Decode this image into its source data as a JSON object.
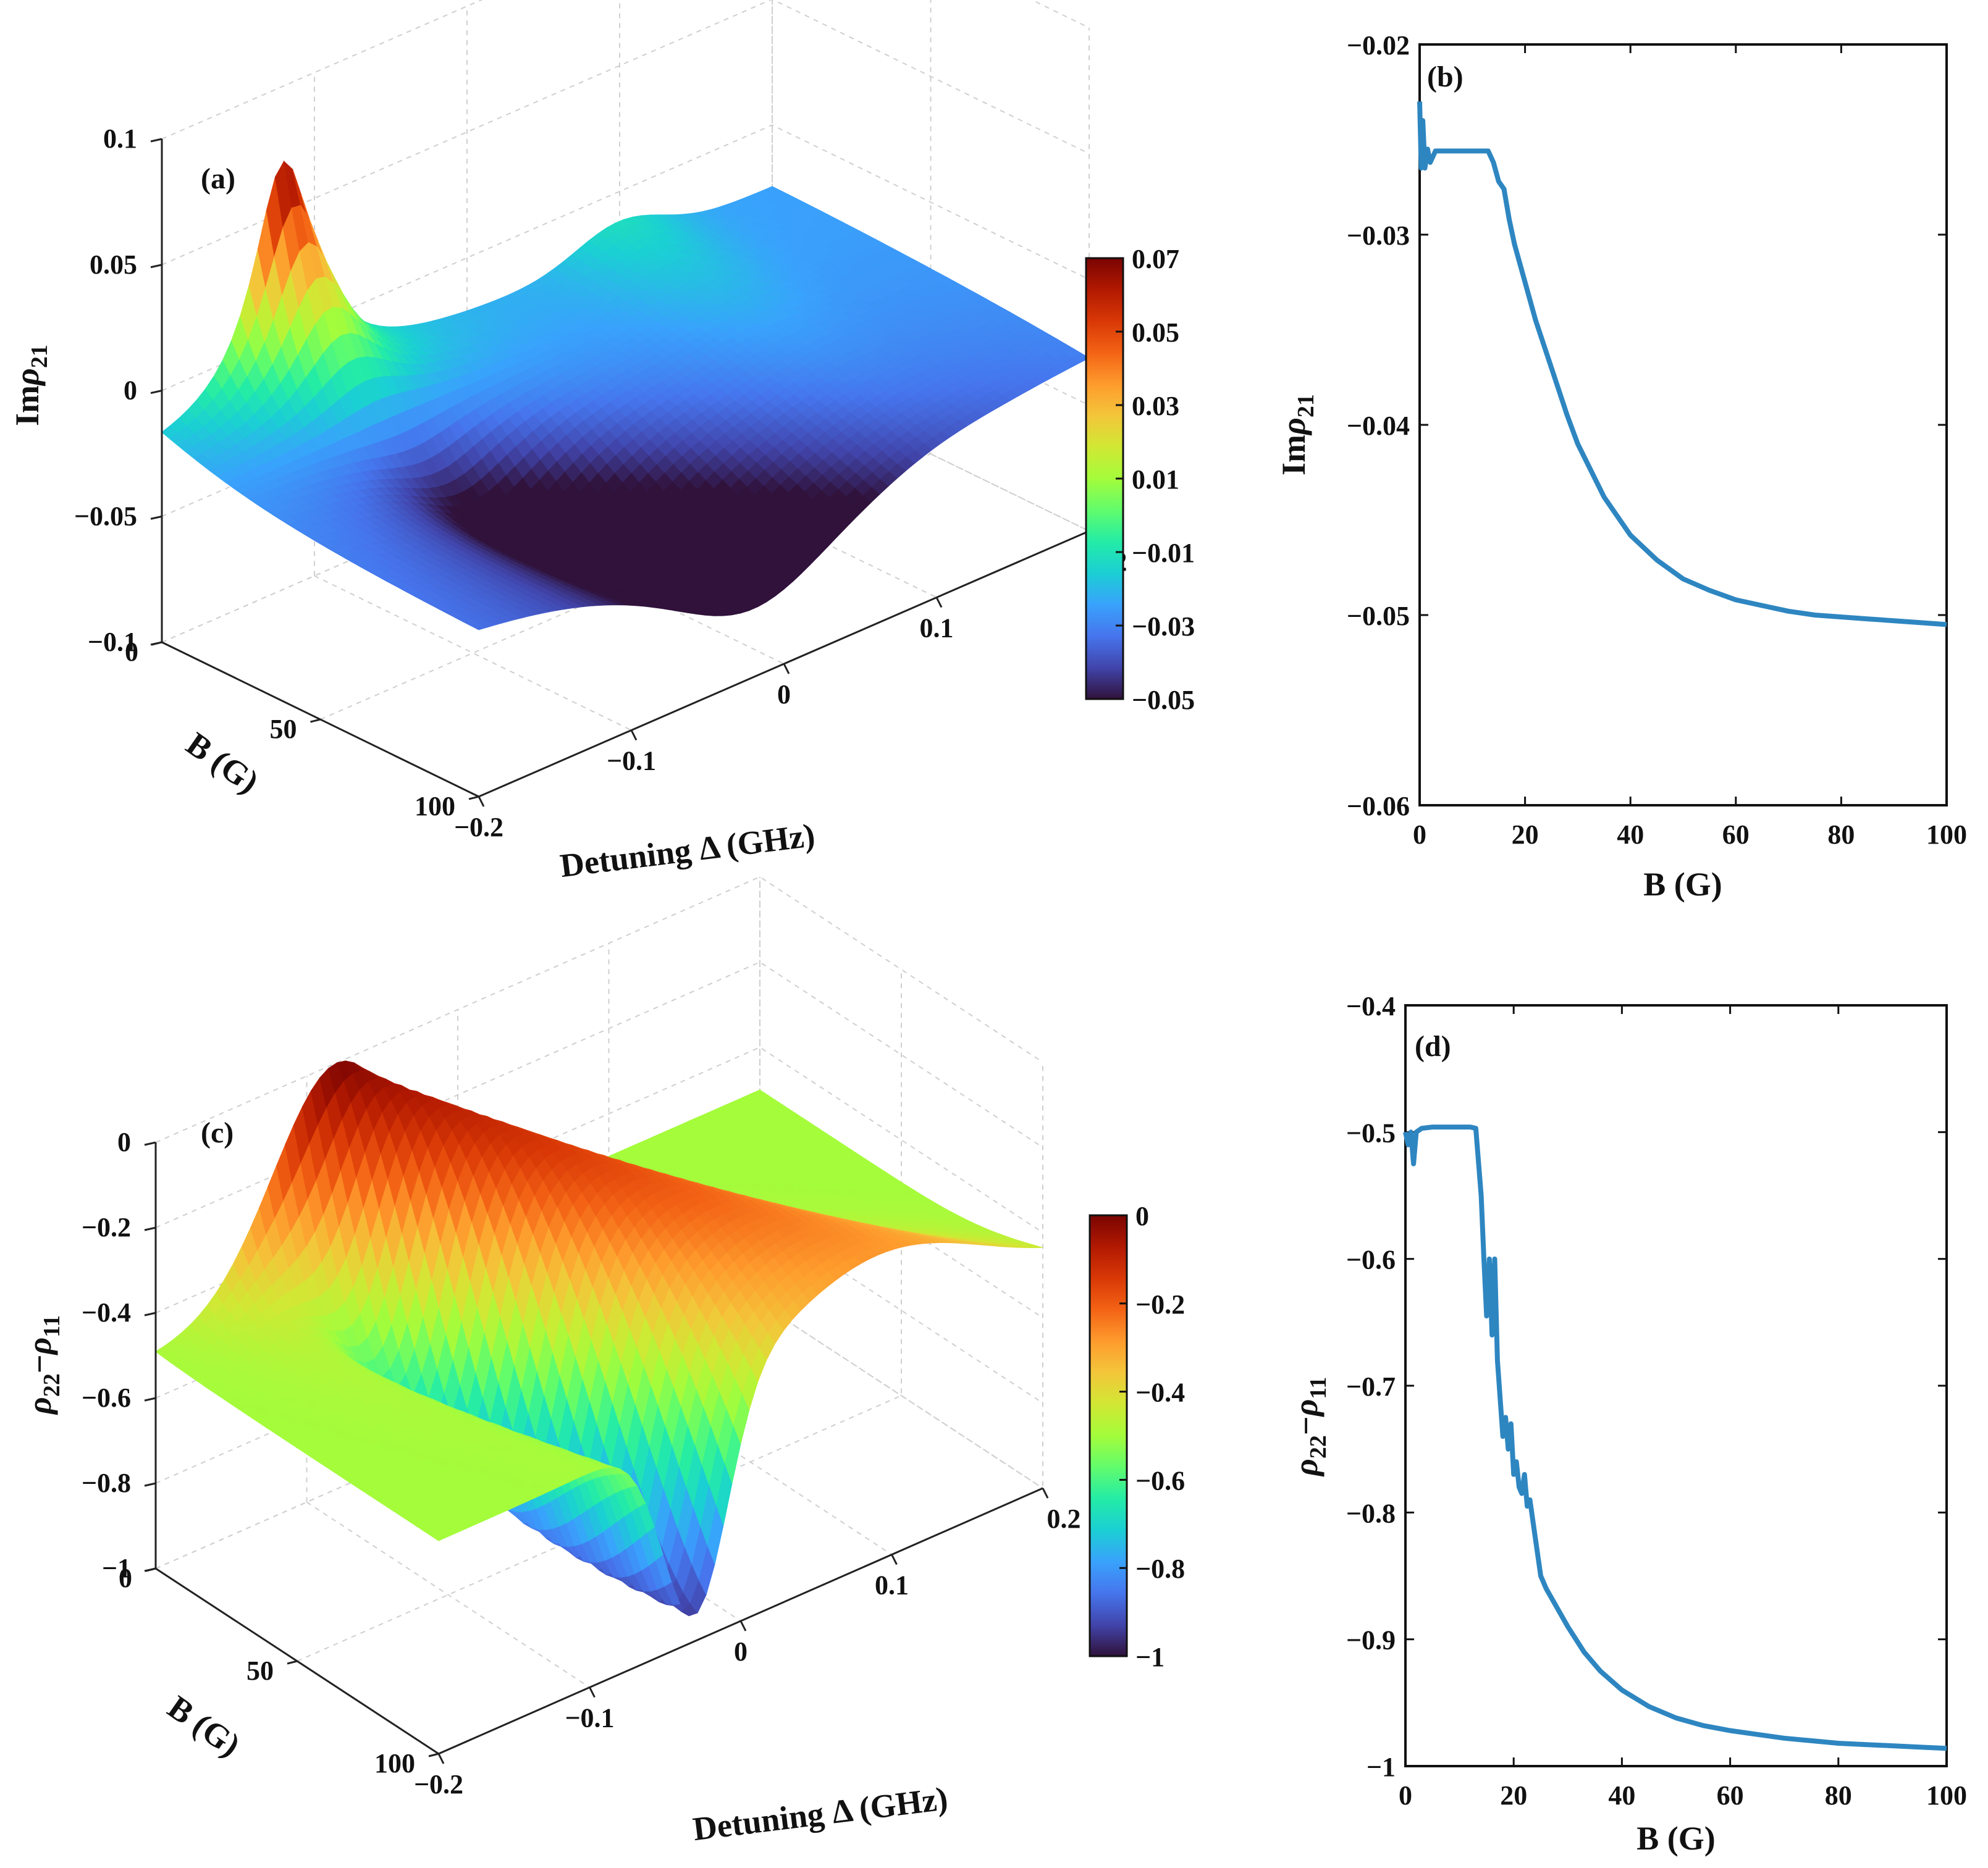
{
  "colors": {
    "line": "#2E86C1",
    "jet": [
      "#30123b",
      "#4145ab",
      "#4675ed",
      "#39a2fc",
      "#1bcfd4",
      "#24eca6",
      "#61fc6c",
      "#a4fc3b",
      "#d1e834",
      "#f3c63a",
      "#fe9b2d",
      "#f36315",
      "#d93806",
      "#b11901",
      "#7a0402"
    ]
  },
  "chart_data": [
    {
      "panel": "(a)",
      "type": "surface",
      "zlabel_prefix": "Im",
      "zlabel_var": "ρ",
      "zlabel_sub": "21",
      "xlabel": "Detuning Δ (GHz)",
      "ylabel": "B (G)",
      "x_ticks": [
        "−0.2",
        "−0.1",
        "0",
        "0.1",
        "0.2"
      ],
      "y_ticks": [
        "0",
        "50",
        "100"
      ],
      "z_ticks": [
        "0.1",
        "0.05",
        "0",
        "−0.05",
        "−0.1"
      ],
      "xlim": [
        -0.2,
        0.2
      ],
      "ylim": [
        0,
        100
      ],
      "zlim": [
        -0.1,
        0.1
      ],
      "colorbar": {
        "ticks": [
          "0.07",
          "0.05",
          "0.03",
          "0.01",
          "−0.01",
          "−0.03",
          "−0.05"
        ],
        "range": [
          -0.05,
          0.07
        ]
      },
      "surface_features": {
        "peak": {
          "detuning": -0.12,
          "B": 0,
          "value": 0.07
        },
        "dip": {
          "detuning": -0.02,
          "B": 100,
          "value": -0.05
        },
        "flat_level": -0.025
      }
    },
    {
      "panel": "(b)",
      "type": "line",
      "ylabel_prefix": "Im",
      "ylabel_var": "ρ",
      "ylabel_sub": "21",
      "xlabel": "B (G)",
      "xlim": [
        0,
        100
      ],
      "ylim": [
        -0.06,
        -0.02
      ],
      "x_ticks": [
        "0",
        "20",
        "40",
        "60",
        "80",
        "100"
      ],
      "y_ticks": [
        "−0.02",
        "−0.03",
        "−0.04",
        "−0.05",
        "−0.06"
      ],
      "x": [
        0,
        0.3,
        0.6,
        1,
        1.5,
        2,
        3,
        5,
        8,
        10,
        12,
        13,
        14,
        15,
        16,
        17,
        18,
        20,
        22,
        25,
        28,
        30,
        35,
        40,
        45,
        50,
        55,
        60,
        65,
        70,
        75,
        80,
        85,
        90,
        95,
        100
      ],
      "y": [
        -0.023,
        -0.0265,
        -0.024,
        -0.0265,
        -0.0255,
        -0.0262,
        -0.0256,
        -0.0256,
        -0.0256,
        -0.0256,
        -0.0256,
        -0.0256,
        -0.0262,
        -0.0272,
        -0.0276,
        -0.0292,
        -0.0305,
        -0.0325,
        -0.0345,
        -0.037,
        -0.0395,
        -0.041,
        -0.0438,
        -0.0458,
        -0.0471,
        -0.0481,
        -0.0487,
        -0.0492,
        -0.0495,
        -0.0498,
        -0.05,
        -0.0501,
        -0.0502,
        -0.0503,
        -0.0504,
        -0.0505
      ]
    },
    {
      "panel": "(c)",
      "type": "surface",
      "zlabel_var1": "ρ",
      "zlabel_sub1": "22",
      "zlabel_minus": "−",
      "zlabel_var2": "ρ",
      "zlabel_sub2": "11",
      "xlabel": "Detuning Δ (GHz)",
      "ylabel": "B (G)",
      "x_ticks": [
        "−0.2",
        "−0.1",
        "0",
        "0.1",
        "0.2"
      ],
      "y_ticks": [
        "0",
        "50",
        "100"
      ],
      "z_ticks": [
        "0",
        "−0.2",
        "−0.4",
        "−0.6",
        "−0.8",
        "−1"
      ],
      "xlim": [
        -0.2,
        0.2
      ],
      "ylim": [
        0,
        100
      ],
      "zlim": [
        -1,
        0
      ],
      "colorbar": {
        "ticks": [
          "0",
          "−0.2",
          "−0.4",
          "−0.6",
          "−0.8",
          "−1"
        ],
        "range": [
          -1,
          0
        ]
      },
      "surface_features": {
        "ridge_level": 0,
        "dip": {
          "detuning": -0.05,
          "B": 100,
          "value": -1
        },
        "flat_level": -0.5
      }
    },
    {
      "panel": "(d)",
      "type": "line",
      "ylabel_var1": "ρ",
      "ylabel_sub1": "22",
      "ylabel_minus": "−",
      "ylabel_var2": "ρ",
      "ylabel_sub2": "11",
      "xlabel": "B (G)",
      "xlim": [
        0,
        100
      ],
      "ylim": [
        -1,
        -0.4
      ],
      "x_ticks": [
        "0",
        "20",
        "40",
        "60",
        "80",
        "100"
      ],
      "y_ticks": [
        "−0.4",
        "−0.5",
        "−0.6",
        "−0.7",
        "−0.8",
        "−0.9",
        "−1"
      ],
      "x": [
        0,
        0.5,
        1,
        1.5,
        2,
        3,
        5,
        8,
        10,
        12,
        13,
        14,
        14.5,
        15,
        15.5,
        16,
        16.5,
        17,
        18,
        18.5,
        19,
        19.5,
        20,
        20.5,
        21,
        21.5,
        22,
        22.5,
        23,
        24,
        25,
        26,
        28,
        30,
        33,
        36,
        40,
        45,
        50,
        55,
        60,
        65,
        70,
        75,
        80,
        85,
        90,
        95,
        100
      ],
      "y": [
        -0.5,
        -0.51,
        -0.5,
        -0.525,
        -0.5,
        -0.497,
        -0.496,
        -0.496,
        -0.496,
        -0.496,
        -0.497,
        -0.55,
        -0.6,
        -0.645,
        -0.6,
        -0.66,
        -0.6,
        -0.68,
        -0.74,
        -0.725,
        -0.75,
        -0.73,
        -0.77,
        -0.76,
        -0.78,
        -0.785,
        -0.77,
        -0.795,
        -0.79,
        -0.82,
        -0.85,
        -0.86,
        -0.875,
        -0.89,
        -0.91,
        -0.925,
        -0.94,
        -0.953,
        -0.962,
        -0.968,
        -0.972,
        -0.975,
        -0.978,
        -0.98,
        -0.982,
        -0.983,
        -0.984,
        -0.985,
        -0.986
      ]
    }
  ]
}
